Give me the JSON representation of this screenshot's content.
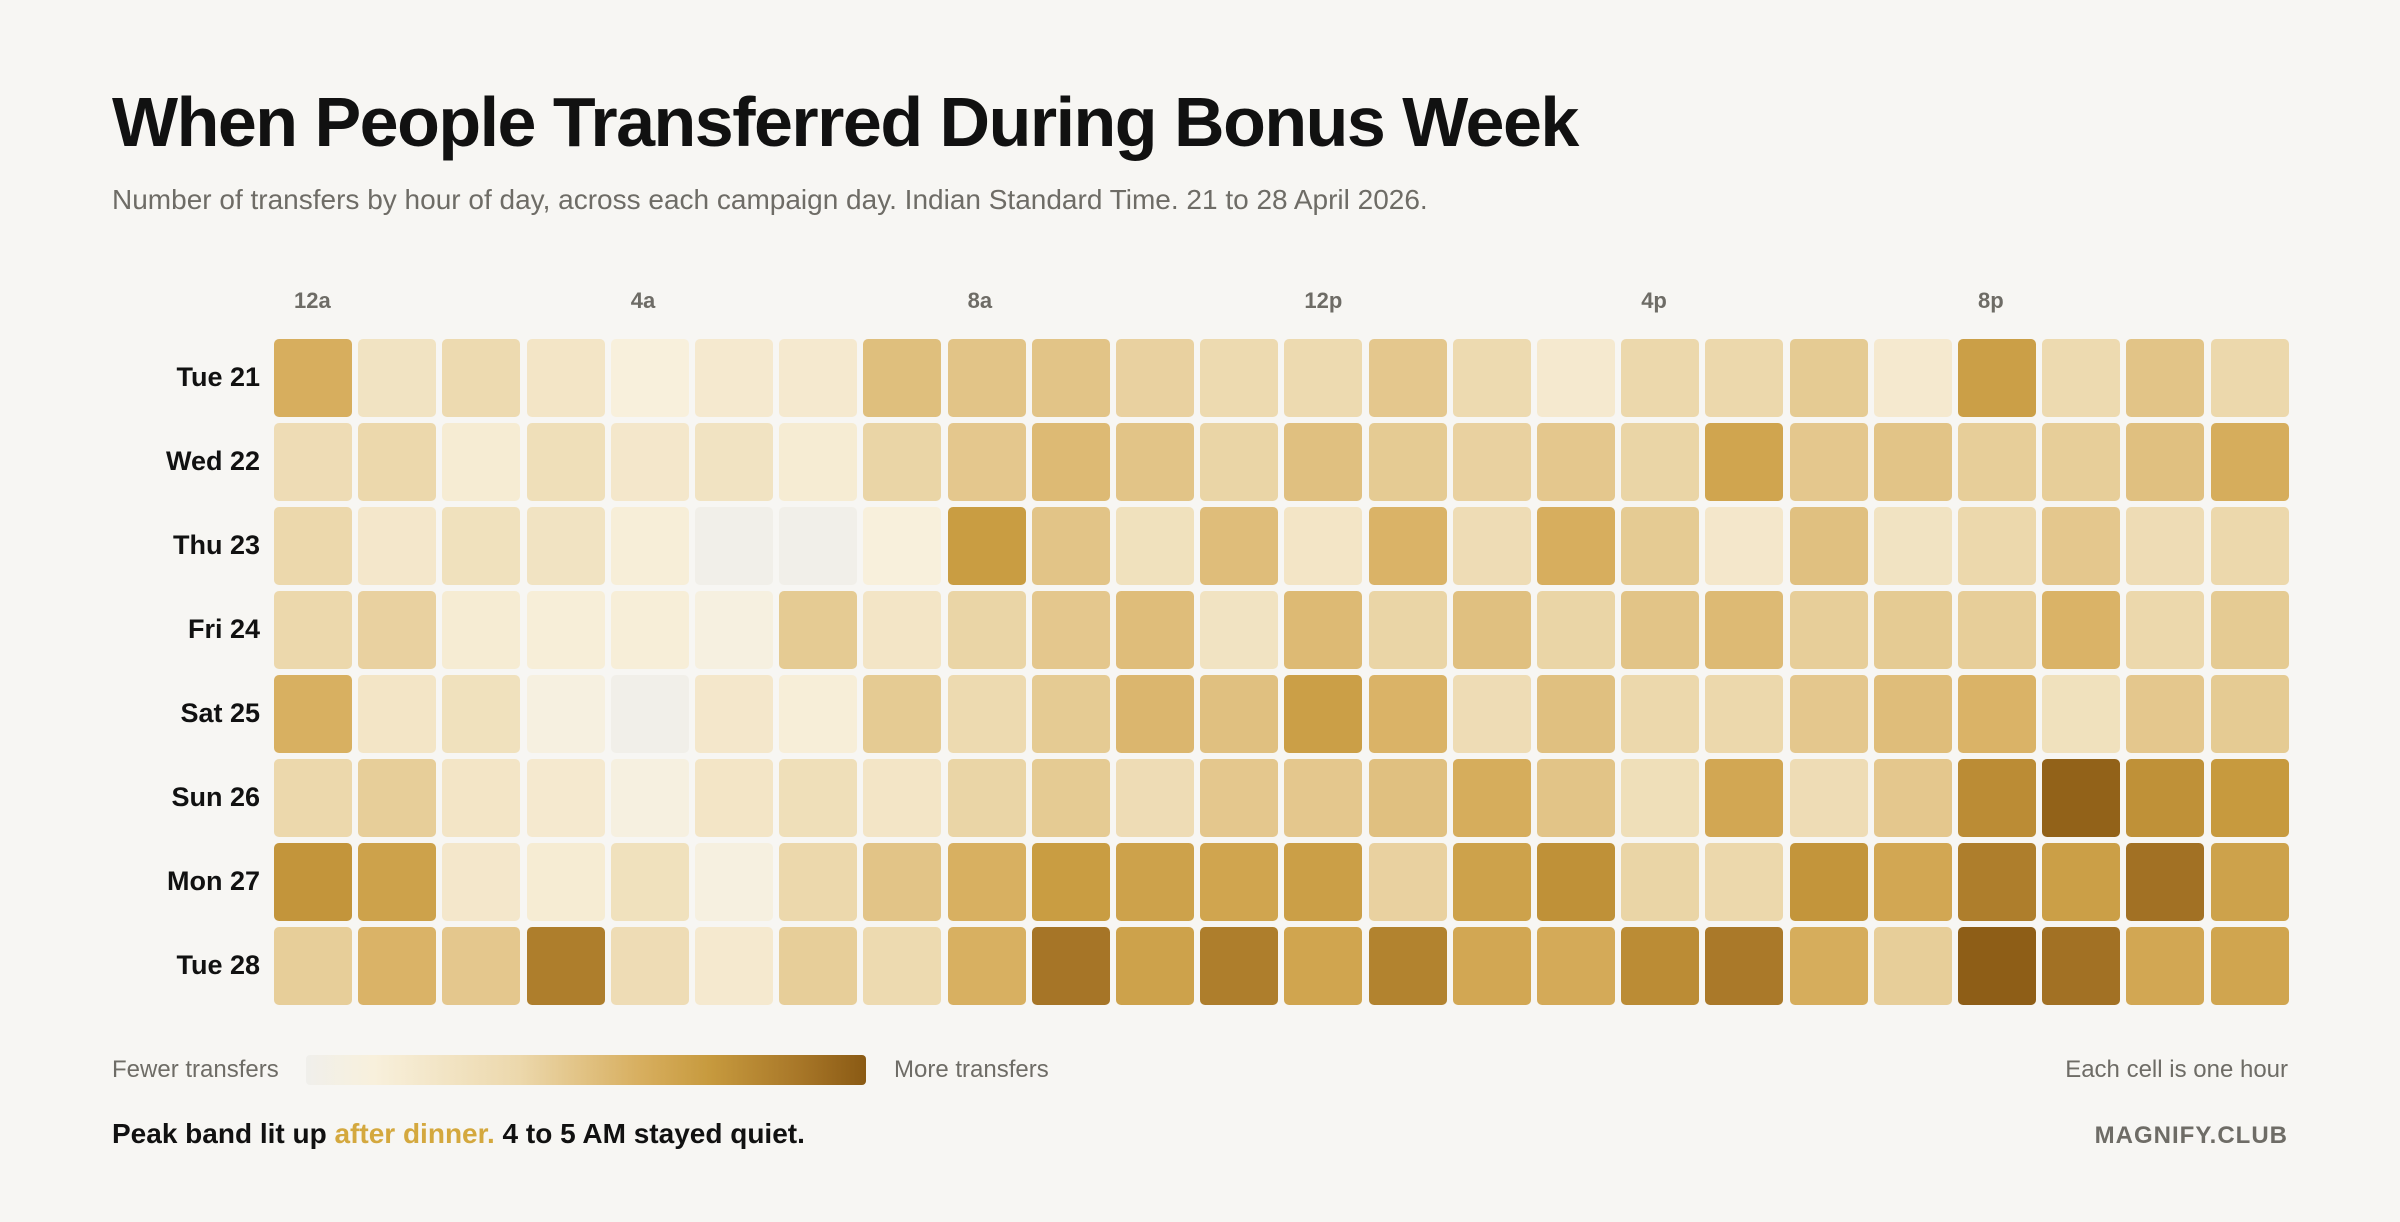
{
  "title": "When People Transferred During Bonus Week",
  "subtitle": "Number of transfers by hour of day, across each campaign day. Indian Standard Time. 21 to 28 April 2026.",
  "legend": {
    "low_label": "Fewer transfers",
    "high_label": "More transfers",
    "note": "Each cell is one hour"
  },
  "caption": {
    "prefix": "Peak band lit up ",
    "highlight": "after dinner.",
    "suffix": " 4 to 5 AM stayed quiet."
  },
  "brand": "MAGNIFY.CLUB",
  "colors": {
    "background": "#f7f6f3",
    "accent": "#d4a83e",
    "scale": [
      "#f0efeb",
      "#f8f0dc",
      "#ecd8ac",
      "#d7ae5e",
      "#c79a3e",
      "#a87728",
      "#8a5a14"
    ]
  },
  "chart_data": {
    "type": "heatmap",
    "title": "When People Transferred During Bonus Week",
    "x_tick_labels": [
      {
        "hour": 0,
        "label": "12a"
      },
      {
        "hour": 4,
        "label": "4a"
      },
      {
        "hour": 8,
        "label": "8a"
      },
      {
        "hour": 12,
        "label": "12p"
      },
      {
        "hour": 16,
        "label": "4p"
      },
      {
        "hour": 20,
        "label": "8p"
      }
    ],
    "hours": [
      0,
      1,
      2,
      3,
      4,
      5,
      6,
      7,
      8,
      9,
      10,
      11,
      12,
      13,
      14,
      15,
      16,
      17,
      18,
      19,
      20,
      21,
      22,
      23
    ],
    "days": [
      "Tue 21",
      "Wed 22",
      "Thu 23",
      "Fri 24",
      "Sat 25",
      "Sun 26",
      "Mon 27",
      "Tue 28"
    ],
    "value_scale": "relative intensity 0 (fewer transfers) to 100 (more transfers)",
    "values": [
      [
        55,
        20,
        28,
        18,
        8,
        14,
        14,
        45,
        42,
        42,
        34,
        28,
        28,
        40,
        28,
        14,
        30,
        30,
        38,
        14,
        66,
        28,
        42,
        30
      ],
      [
        26,
        30,
        12,
        24,
        16,
        20,
        12,
        32,
        40,
        48,
        42,
        32,
        44,
        38,
        34,
        40,
        32,
        62,
        40,
        42,
        36,
        36,
        44,
        56
      ],
      [
        30,
        16,
        22,
        20,
        10,
        1,
        1,
        8,
        68,
        42,
        22,
        46,
        18,
        52,
        26,
        55,
        38,
        16,
        44,
        20,
        30,
        40,
        26,
        30
      ],
      [
        30,
        34,
        12,
        10,
        10,
        6,
        38,
        18,
        32,
        40,
        46,
        20,
        48,
        32,
        44,
        32,
        42,
        48,
        36,
        38,
        36,
        52,
        30,
        38
      ],
      [
        54,
        18,
        22,
        6,
        1,
        16,
        10,
        38,
        28,
        38,
        50,
        44,
        66,
        52,
        26,
        44,
        30,
        30,
        40,
        46,
        52,
        22,
        40,
        38
      ],
      [
        30,
        36,
        18,
        14,
        6,
        18,
        24,
        18,
        32,
        38,
        26,
        40,
        40,
        44,
        56,
        42,
        24,
        60,
        26,
        40,
        76,
        96,
        74,
        70
      ],
      [
        72,
        64,
        16,
        12,
        22,
        6,
        30,
        42,
        54,
        68,
        64,
        62,
        66,
        34,
        64,
        74,
        32,
        30,
        72,
        60,
        82,
        66,
        88,
        64
      ],
      [
        36,
        52,
        40,
        82,
        26,
        14,
        36,
        28,
        54,
        86,
        64,
        82,
        62,
        80,
        60,
        58,
        76,
        84,
        56,
        36,
        98,
        88,
        60,
        62
      ]
    ],
    "legend": {
      "min_label": "Fewer transfers",
      "max_label": "More transfers",
      "placement": "bottom-left"
    },
    "grid": false
  }
}
